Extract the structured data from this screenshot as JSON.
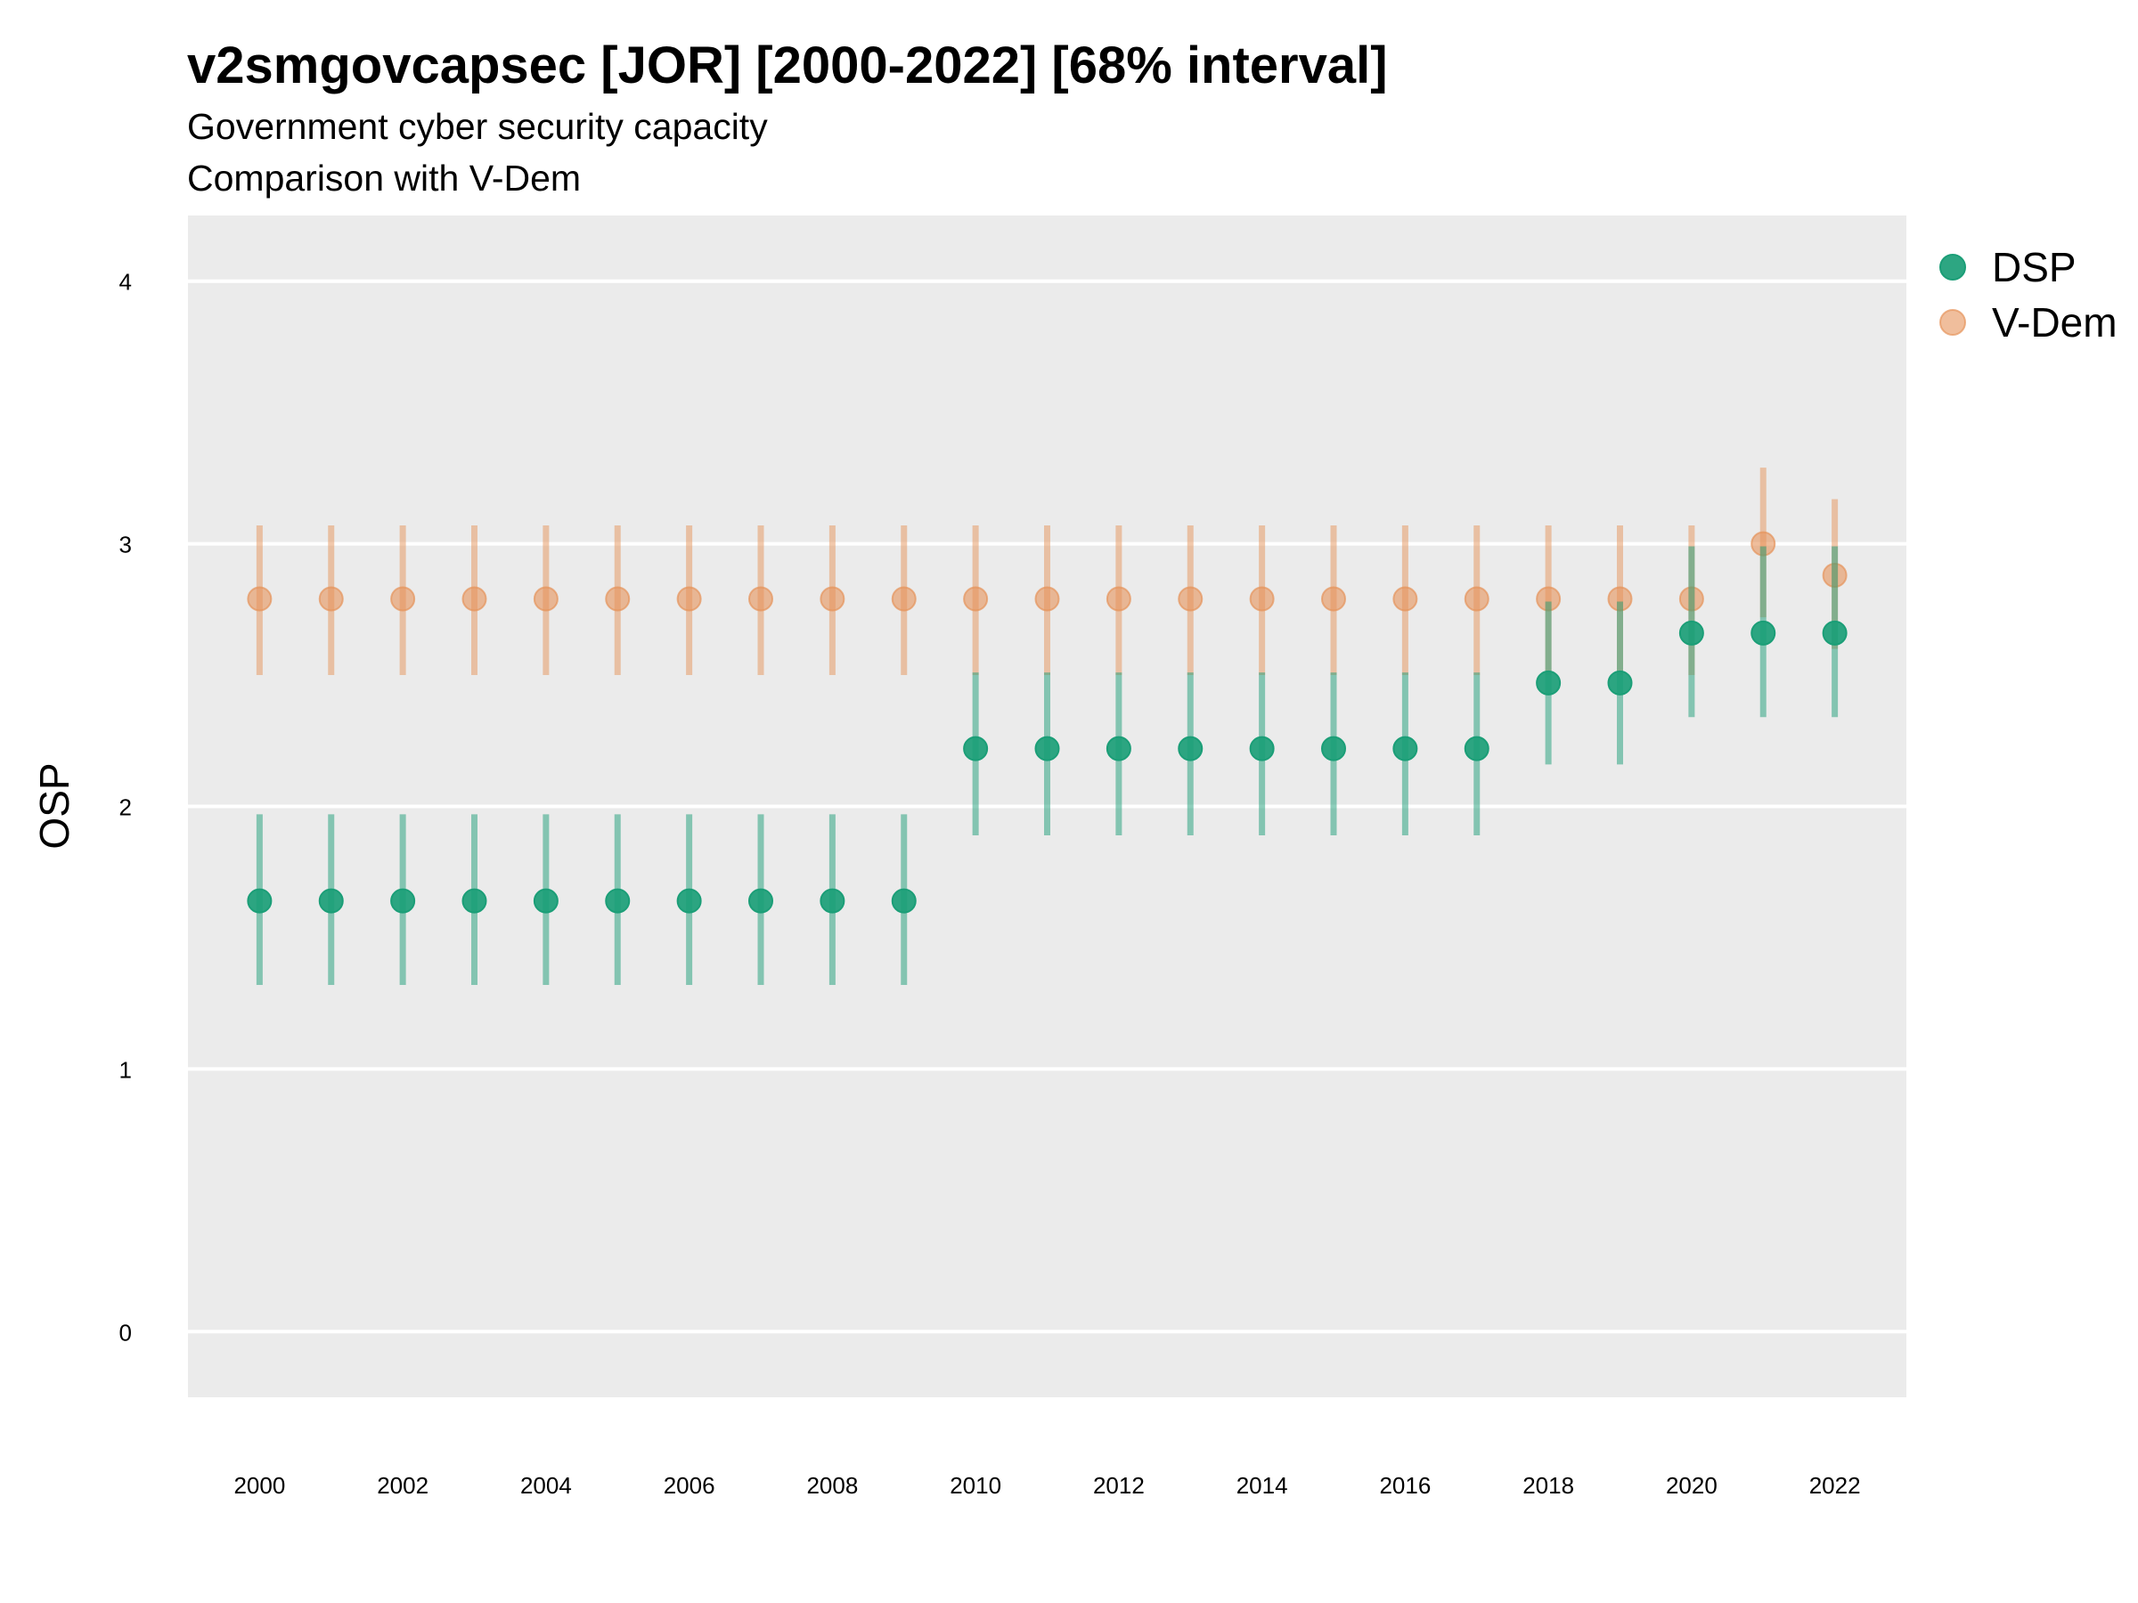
{
  "chart_data": {
    "type": "scatter",
    "title": "v2smgovcapsec [JOR] [2000-2022] [68% interval]",
    "subtitle_lines": [
      "Government cyber security capacity",
      "Comparison with V-Dem"
    ],
    "xlabel": "",
    "ylabel": "OSP",
    "xlim": [
      1999,
      2023
    ],
    "ylim": [
      -0.25,
      4.25
    ],
    "yticks": [
      0,
      1,
      2,
      3,
      4
    ],
    "xticks": [
      2000,
      2002,
      2004,
      2006,
      2008,
      2010,
      2012,
      2014,
      2016,
      2018,
      2020,
      2022
    ],
    "grid": true,
    "legend_position": "right",
    "x": [
      2000,
      2001,
      2002,
      2003,
      2004,
      2005,
      2006,
      2007,
      2008,
      2009,
      2010,
      2011,
      2012,
      2013,
      2014,
      2015,
      2016,
      2017,
      2018,
      2019,
      2020,
      2021,
      2022
    ],
    "series": [
      {
        "name": "V-Dem",
        "color": "#E6935A",
        "values": [
          2.79,
          2.79,
          2.79,
          2.79,
          2.79,
          2.79,
          2.79,
          2.79,
          2.79,
          2.79,
          2.79,
          2.79,
          2.79,
          2.79,
          2.79,
          2.79,
          2.79,
          2.79,
          2.79,
          2.79,
          2.79,
          3.0,
          2.88
        ],
        "lower": [
          2.5,
          2.5,
          2.5,
          2.5,
          2.5,
          2.5,
          2.5,
          2.5,
          2.5,
          2.5,
          2.5,
          2.5,
          2.5,
          2.5,
          2.5,
          2.5,
          2.5,
          2.5,
          2.5,
          2.5,
          2.5,
          2.72,
          2.6
        ],
        "upper": [
          3.07,
          3.07,
          3.07,
          3.07,
          3.07,
          3.07,
          3.07,
          3.07,
          3.07,
          3.07,
          3.07,
          3.07,
          3.07,
          3.07,
          3.07,
          3.07,
          3.07,
          3.07,
          3.07,
          3.07,
          3.07,
          3.29,
          3.17
        ]
      },
      {
        "name": "DSP",
        "color": "#1B9E77",
        "values": [
          1.64,
          1.64,
          1.64,
          1.64,
          1.64,
          1.64,
          1.64,
          1.64,
          1.64,
          1.64,
          2.22,
          2.22,
          2.22,
          2.22,
          2.22,
          2.22,
          2.22,
          2.22,
          2.47,
          2.47,
          2.66,
          2.66,
          2.66
        ],
        "lower": [
          1.32,
          1.32,
          1.32,
          1.32,
          1.32,
          1.32,
          1.32,
          1.32,
          1.32,
          1.32,
          1.89,
          1.89,
          1.89,
          1.89,
          1.89,
          1.89,
          1.89,
          1.89,
          2.16,
          2.16,
          2.34,
          2.34,
          2.34
        ],
        "upper": [
          1.97,
          1.97,
          1.97,
          1.97,
          1.97,
          1.97,
          1.97,
          1.97,
          1.97,
          1.97,
          2.51,
          2.51,
          2.51,
          2.51,
          2.51,
          2.51,
          2.51,
          2.51,
          2.78,
          2.78,
          2.99,
          2.99,
          2.99
        ]
      }
    ],
    "legend": [
      {
        "name": "DSP",
        "color": "#1B9E77"
      },
      {
        "name": "V-Dem",
        "color": "#E6935A"
      }
    ]
  }
}
